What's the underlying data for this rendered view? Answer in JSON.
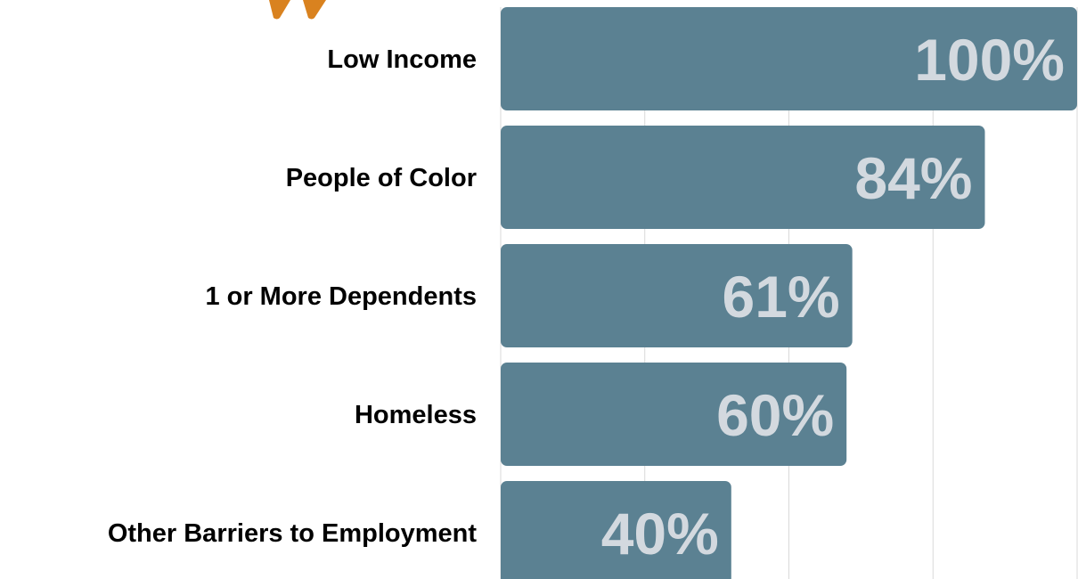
{
  "colors": {
    "bar": "#5b8192",
    "value_label": "#d3d9df",
    "gridline": "#d9d9d9",
    "quote_mark": "#d9821f",
    "category_label": "#000000"
  },
  "decor": {
    "quote_icon": "quote-mark-icon"
  },
  "chart_data": {
    "type": "bar",
    "orientation": "horizontal",
    "categories": [
      "Low Income",
      "People of Color",
      "1 or More Dependents",
      "Homeless",
      "Other Barriers to Employment"
    ],
    "values": [
      100,
      84,
      61,
      60,
      40
    ],
    "value_labels": [
      "100%",
      "84%",
      "61%",
      "60%",
      "40%"
    ],
    "xlim": [
      0,
      100
    ],
    "grid": true,
    "legend": "none"
  }
}
